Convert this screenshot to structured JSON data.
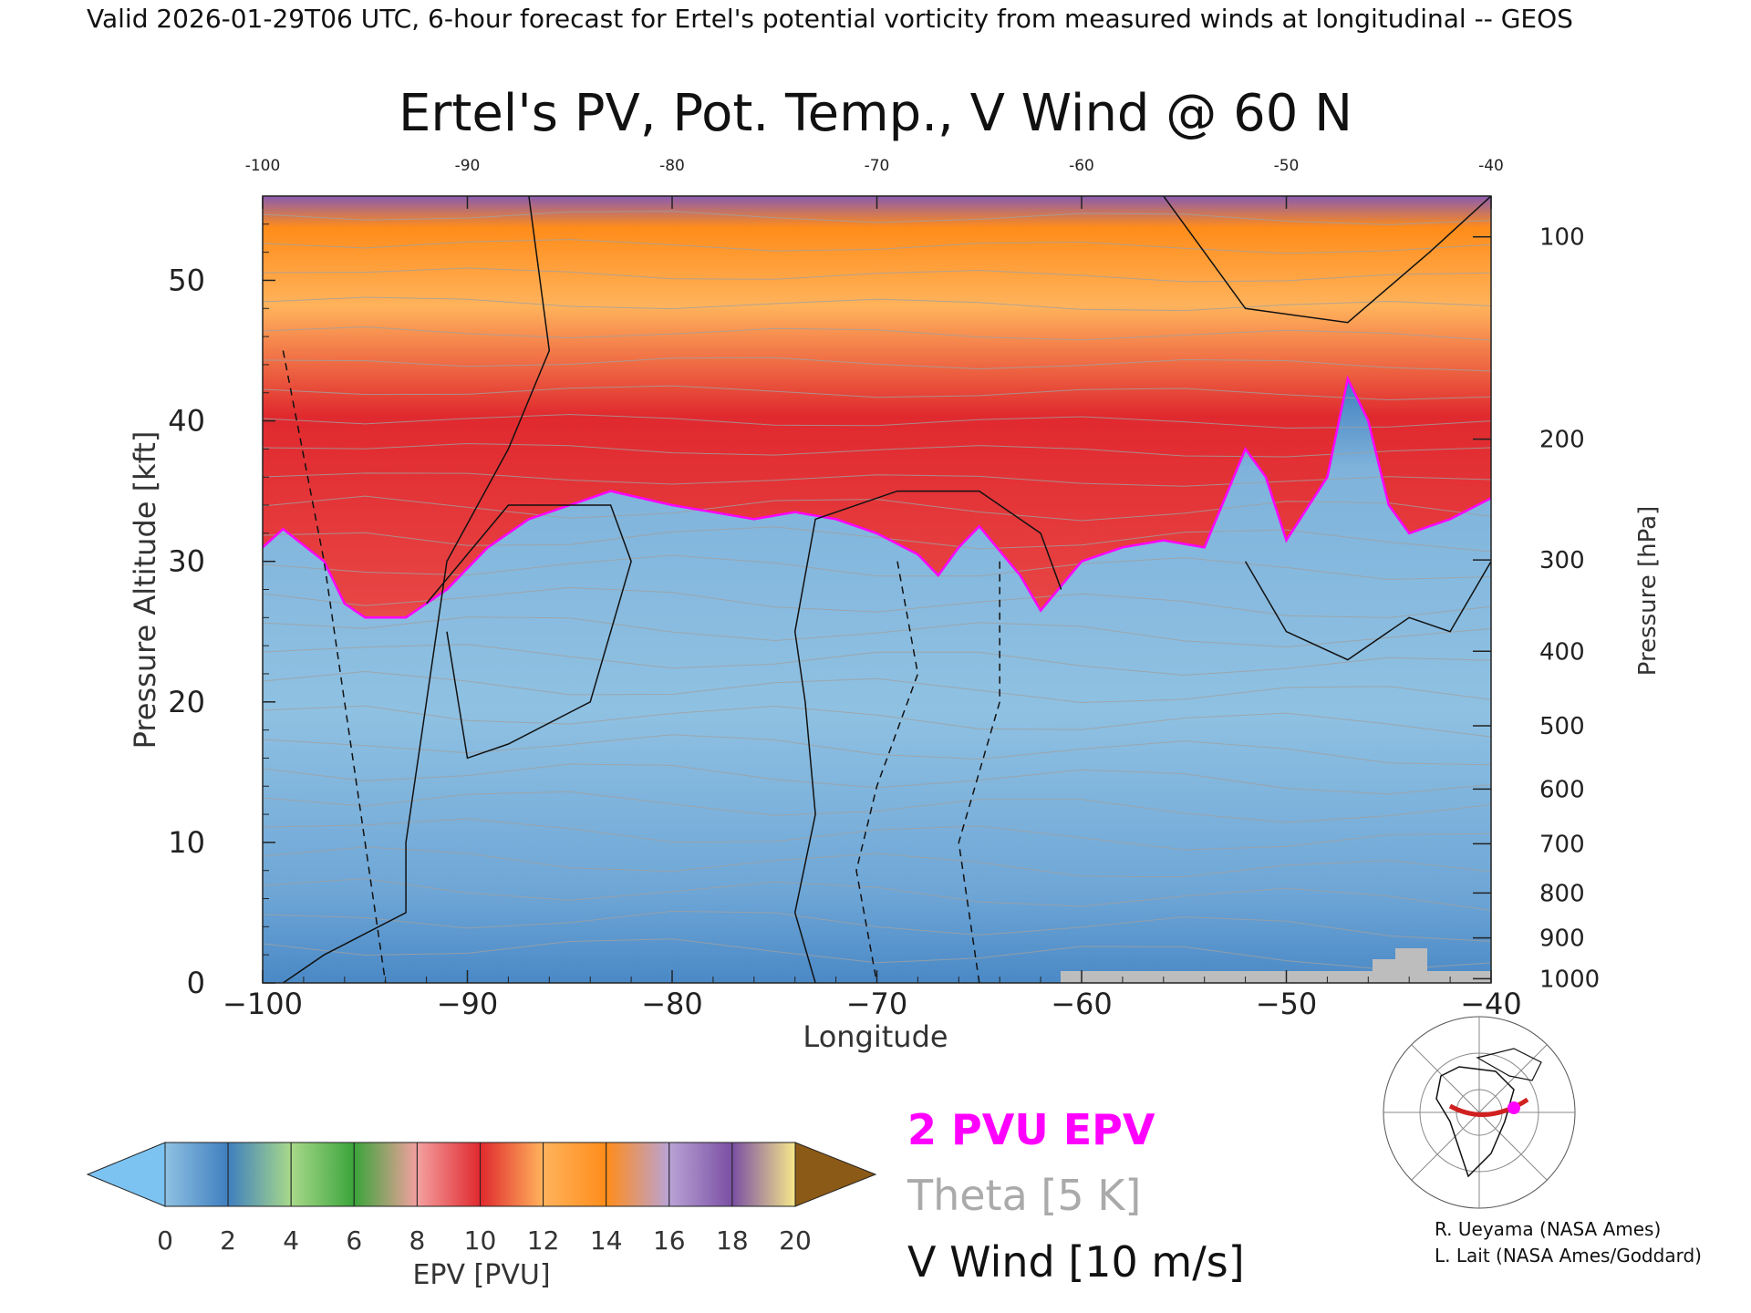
{
  "header": {
    "valid_line": "Valid 2026-01-29T06 UTC, 6-hour forecast for Ertel's potential vorticity from measured winds at longitudinal -- GEOS"
  },
  "chart_data": {
    "type": "heatmap",
    "title": "Ertel's PV, Pot. Temp., V Wind @ 60 N",
    "xlabel": "Longitude",
    "ylabel": "Pressure Altitude [kft]",
    "y2label": "Pressure [hPa]",
    "xlim": [
      -100,
      -40
    ],
    "ylim": [
      0,
      56
    ],
    "x_ticks": [
      -100,
      -90,
      -80,
      -70,
      -60,
      -50,
      -40
    ],
    "x_tick_labels": [
      "−100",
      "−90",
      "−80",
      "−70",
      "−60",
      "−50",
      "−40"
    ],
    "x_top_tick_labels": [
      "-100",
      "-90",
      "-80",
      "-70",
      "-60",
      "-50",
      "-40"
    ],
    "y_ticks": [
      0,
      10,
      20,
      30,
      40,
      50
    ],
    "pressure_ticks": [
      {
        "label": "100",
        "kft": 53.1
      },
      {
        "label": "200",
        "kft": 38.7
      },
      {
        "label": "300",
        "kft": 30.1
      },
      {
        "label": "400",
        "kft": 23.6
      },
      {
        "label": "500",
        "kft": 18.3
      },
      {
        "label": "600",
        "kft": 13.8
      },
      {
        "label": "700",
        "kft": 9.9
      },
      {
        "label": "800",
        "kft": 6.4
      },
      {
        "label": "900",
        "kft": 3.2
      },
      {
        "label": "1000",
        "kft": 0.3
      }
    ],
    "tropopause_2pvu_kft": [
      [
        -100,
        31
      ],
      [
        -99,
        32.3
      ],
      [
        -97,
        30
      ],
      [
        -96,
        27
      ],
      [
        -95,
        26
      ],
      [
        -93,
        26
      ],
      [
        -91,
        28
      ],
      [
        -89,
        31
      ],
      [
        -87,
        33
      ],
      [
        -85,
        34
      ],
      [
        -83,
        35
      ],
      [
        -80,
        34
      ],
      [
        -78,
        33.5
      ],
      [
        -76,
        33
      ],
      [
        -74,
        33.5
      ],
      [
        -72,
        33
      ],
      [
        -70,
        32
      ],
      [
        -68,
        30.5
      ],
      [
        -67,
        29
      ],
      [
        -66,
        31
      ],
      [
        -65,
        32.5
      ],
      [
        -63,
        29
      ],
      [
        -62,
        26.5
      ],
      [
        -60,
        30
      ],
      [
        -58,
        31
      ],
      [
        -56,
        31.5
      ],
      [
        -54,
        31
      ],
      [
        -52,
        38
      ],
      [
        -51,
        36
      ],
      [
        -50,
        31.5
      ],
      [
        -48,
        36
      ],
      [
        -47,
        43
      ],
      [
        -46,
        40
      ],
      [
        -45,
        34
      ],
      [
        -44,
        32
      ],
      [
        -42,
        33
      ],
      [
        -40,
        34.5
      ]
    ],
    "colorbar": {
      "label": "EPV [PVU]",
      "min": 0,
      "max": 20,
      "step": 2,
      "tick_labels": [
        "0",
        "2",
        "4",
        "6",
        "8",
        "10",
        "12",
        "14",
        "16",
        "18",
        "20"
      ],
      "colors": [
        "#8fc1e2",
        "#3f7fbf",
        "#a8d98a",
        "#3aa43a",
        "#f4a0a0",
        "#e0292e",
        "#ffb35c",
        "#ff8c1a",
        "#b9a3d6",
        "#7a4fa3",
        "#f6e88a",
        "#8b5a16"
      ],
      "under_color": "#7cc3f2",
      "over_color": "#8b5a16"
    }
  },
  "legend": {
    "epv_label": "2 PVU EPV",
    "theta_label": "Theta [5 K]",
    "wind_label": "V Wind [10 m/s]",
    "epv_color": "#ff00ff",
    "theta_color": "#aaaaaa",
    "wind_color": "#000000"
  },
  "credits": {
    "line1": "R. Ueyama (NASA Ames)",
    "line2": "L. Lait (NASA Ames/Goddard)"
  }
}
